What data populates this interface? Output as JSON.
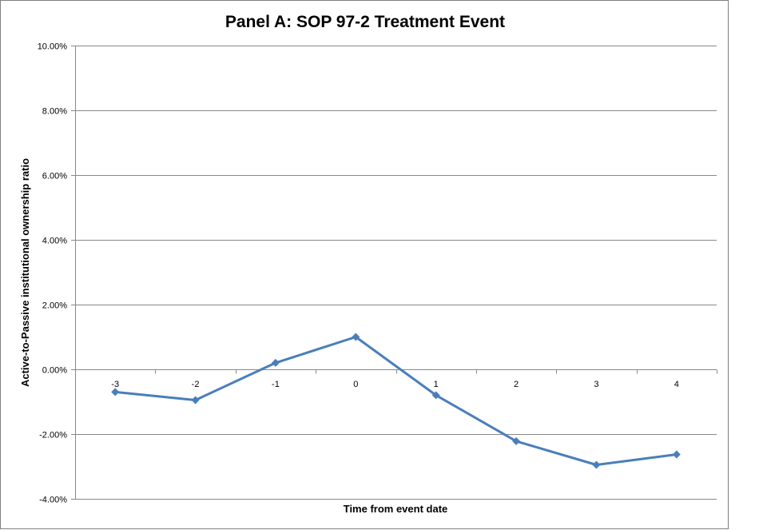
{
  "chart_data": {
    "type": "line",
    "title": "Panel A: SOP 97-2 Treatment Event",
    "xlabel": "Time from event date",
    "ylabel": "Active-to-Passive institutional ownership ratio",
    "categories": [
      "-3",
      "-2",
      "-1",
      "0",
      "1",
      "2",
      "3",
      "4"
    ],
    "series": [
      {
        "values": [
          -0.007,
          -0.0095,
          0.002,
          0.01,
          -0.008,
          -0.0222,
          -0.0295,
          -0.0263
        ]
      }
    ],
    "ylim": [
      -0.04,
      0.1
    ],
    "yticks": [
      -0.04,
      -0.02,
      0.0,
      0.02,
      0.04,
      0.06,
      0.08,
      0.1
    ],
    "ytick_labels": [
      "-4.00%",
      "-2.00%",
      "0.00%",
      "2.00%",
      "4.00%",
      "6.00%",
      "8.00%",
      "10.00%"
    ],
    "grid": true,
    "legend": "none",
    "line_color": "#4a7ebb",
    "marker": "diamond"
  }
}
